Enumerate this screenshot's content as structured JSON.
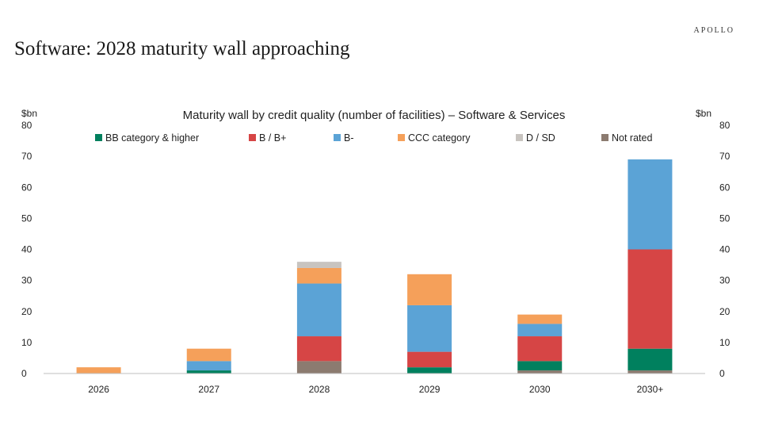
{
  "header": {
    "brand": "APOLLO",
    "title": "Software: 2028 maturity wall approaching"
  },
  "chart_data": {
    "type": "bar",
    "stacked": true,
    "title": "Maturity wall by credit quality (number of facilities) – Software & Services",
    "ylabel_left": "$bn",
    "ylabel_right": "$bn",
    "ylim": [
      0,
      80
    ],
    "yticks": [
      0,
      10,
      20,
      30,
      40,
      50,
      60,
      70,
      80
    ],
    "categories": [
      "2026",
      "2027",
      "2028",
      "2029",
      "2030",
      "2030+"
    ],
    "legend_position": "top",
    "series": [
      {
        "name": "Not rated",
        "color": "#8c7b70",
        "values": [
          0,
          0,
          4,
          0,
          1,
          1
        ]
      },
      {
        "name": "BB category & higher",
        "color": "#00805e",
        "values": [
          0,
          1,
          0,
          2,
          3,
          7
        ]
      },
      {
        "name": "B / B+",
        "color": "#d64545",
        "values": [
          0,
          0,
          8,
          5,
          8,
          32
        ]
      },
      {
        "name": "B-",
        "color": "#5ba3d6",
        "values": [
          0,
          3,
          17,
          15,
          4,
          29
        ]
      },
      {
        "name": "CCC category",
        "color": "#f5a05a",
        "values": [
          2,
          4,
          5,
          10,
          3,
          0
        ]
      },
      {
        "name": "D / SD",
        "color": "#c8c4c0",
        "values": [
          0,
          0,
          2,
          0,
          0,
          0
        ]
      }
    ],
    "legend_order": [
      "BB category & higher",
      "B / B+",
      "B-",
      "CCC category",
      "D / SD",
      "Not rated"
    ]
  }
}
